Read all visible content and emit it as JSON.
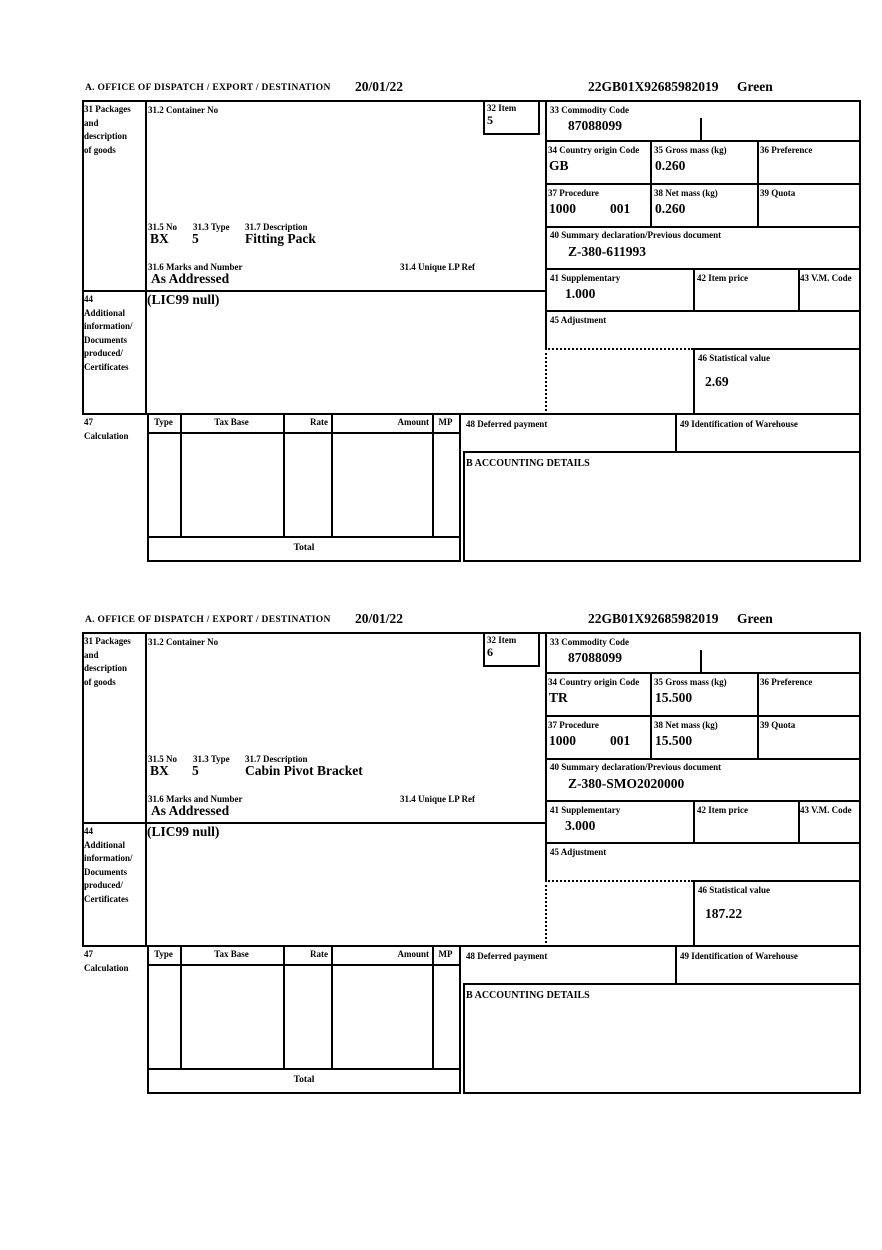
{
  "form_header": {
    "office_label": "A. OFFICE OF DISPATCH / EXPORT / DESTINATION",
    "date": "20/01/22",
    "mrn": "22GB01X92685982019",
    "routing": "Green"
  },
  "labels": {
    "box31": "31 Packages\nand\ndescription\nof goods",
    "container_no": "31.2 Container No",
    "item": "32 Item",
    "commodity_code": "33 Commodity Code",
    "country_origin": "34 Country origin Code",
    "gross_mass": "35 Gross mass (kg)",
    "preference": "36 Preference",
    "procedure": "37 Procedure",
    "net_mass": "38 Net mass (kg)",
    "quota": "39 Quota",
    "pkg_no": "31.5 No",
    "pkg_type": "31.3 Type",
    "description": "31.7 Description",
    "marks": "31.6 Marks and Number",
    "unique_lp_ref": "31.4 Unique LP Ref",
    "summary_declaration": "40 Summary declaration/Previous document",
    "supplementary": "41 Supplementary",
    "item_price": "42 Item price",
    "vm_code": "43 V.M. Code",
    "box44": "44\nAdditional\ninformation/\nDocuments\nproduced/\nCertificates",
    "adjustment": "45 Adjustment",
    "statistical_value": "46 Statistical value",
    "box47": "47\nCalculation",
    "col_type": "Type",
    "col_tax_base": "Tax Base",
    "col_rate": "Rate",
    "col_amount": "Amount",
    "col_mp": "MP",
    "deferred_payment": "48 Deferred payment",
    "warehouse": "49 Identification of Warehouse",
    "accounting": "B ACCOUNTING DETAILS",
    "total": "Total"
  },
  "items": [
    {
      "item_no": "5",
      "commodity_code": "87088099",
      "country_origin": "GB",
      "gross_mass": "0.260",
      "procedure_1": "1000",
      "procedure_2": "001",
      "net_mass": "0.260",
      "pkg_no": "BX",
      "pkg_type": "5",
      "description": "Fitting Pack",
      "marks": "As Addressed",
      "summary_declaration": "Z-380-611993",
      "supplementary": "1.000",
      "additional_info": "(LIC99 null)",
      "statistical_value": "2.69"
    },
    {
      "item_no": "6",
      "commodity_code": "87088099",
      "country_origin": "TR",
      "gross_mass": "15.500",
      "procedure_1": "1000",
      "procedure_2": "001",
      "net_mass": "15.500",
      "pkg_no": "BX",
      "pkg_type": "5",
      "description": "Cabin Pivot Bracket",
      "marks": "As Addressed",
      "summary_declaration": "Z-380-SMO2020000",
      "supplementary": "3.000",
      "additional_info": "(LIC99 null)",
      "statistical_value": "187.22"
    }
  ]
}
